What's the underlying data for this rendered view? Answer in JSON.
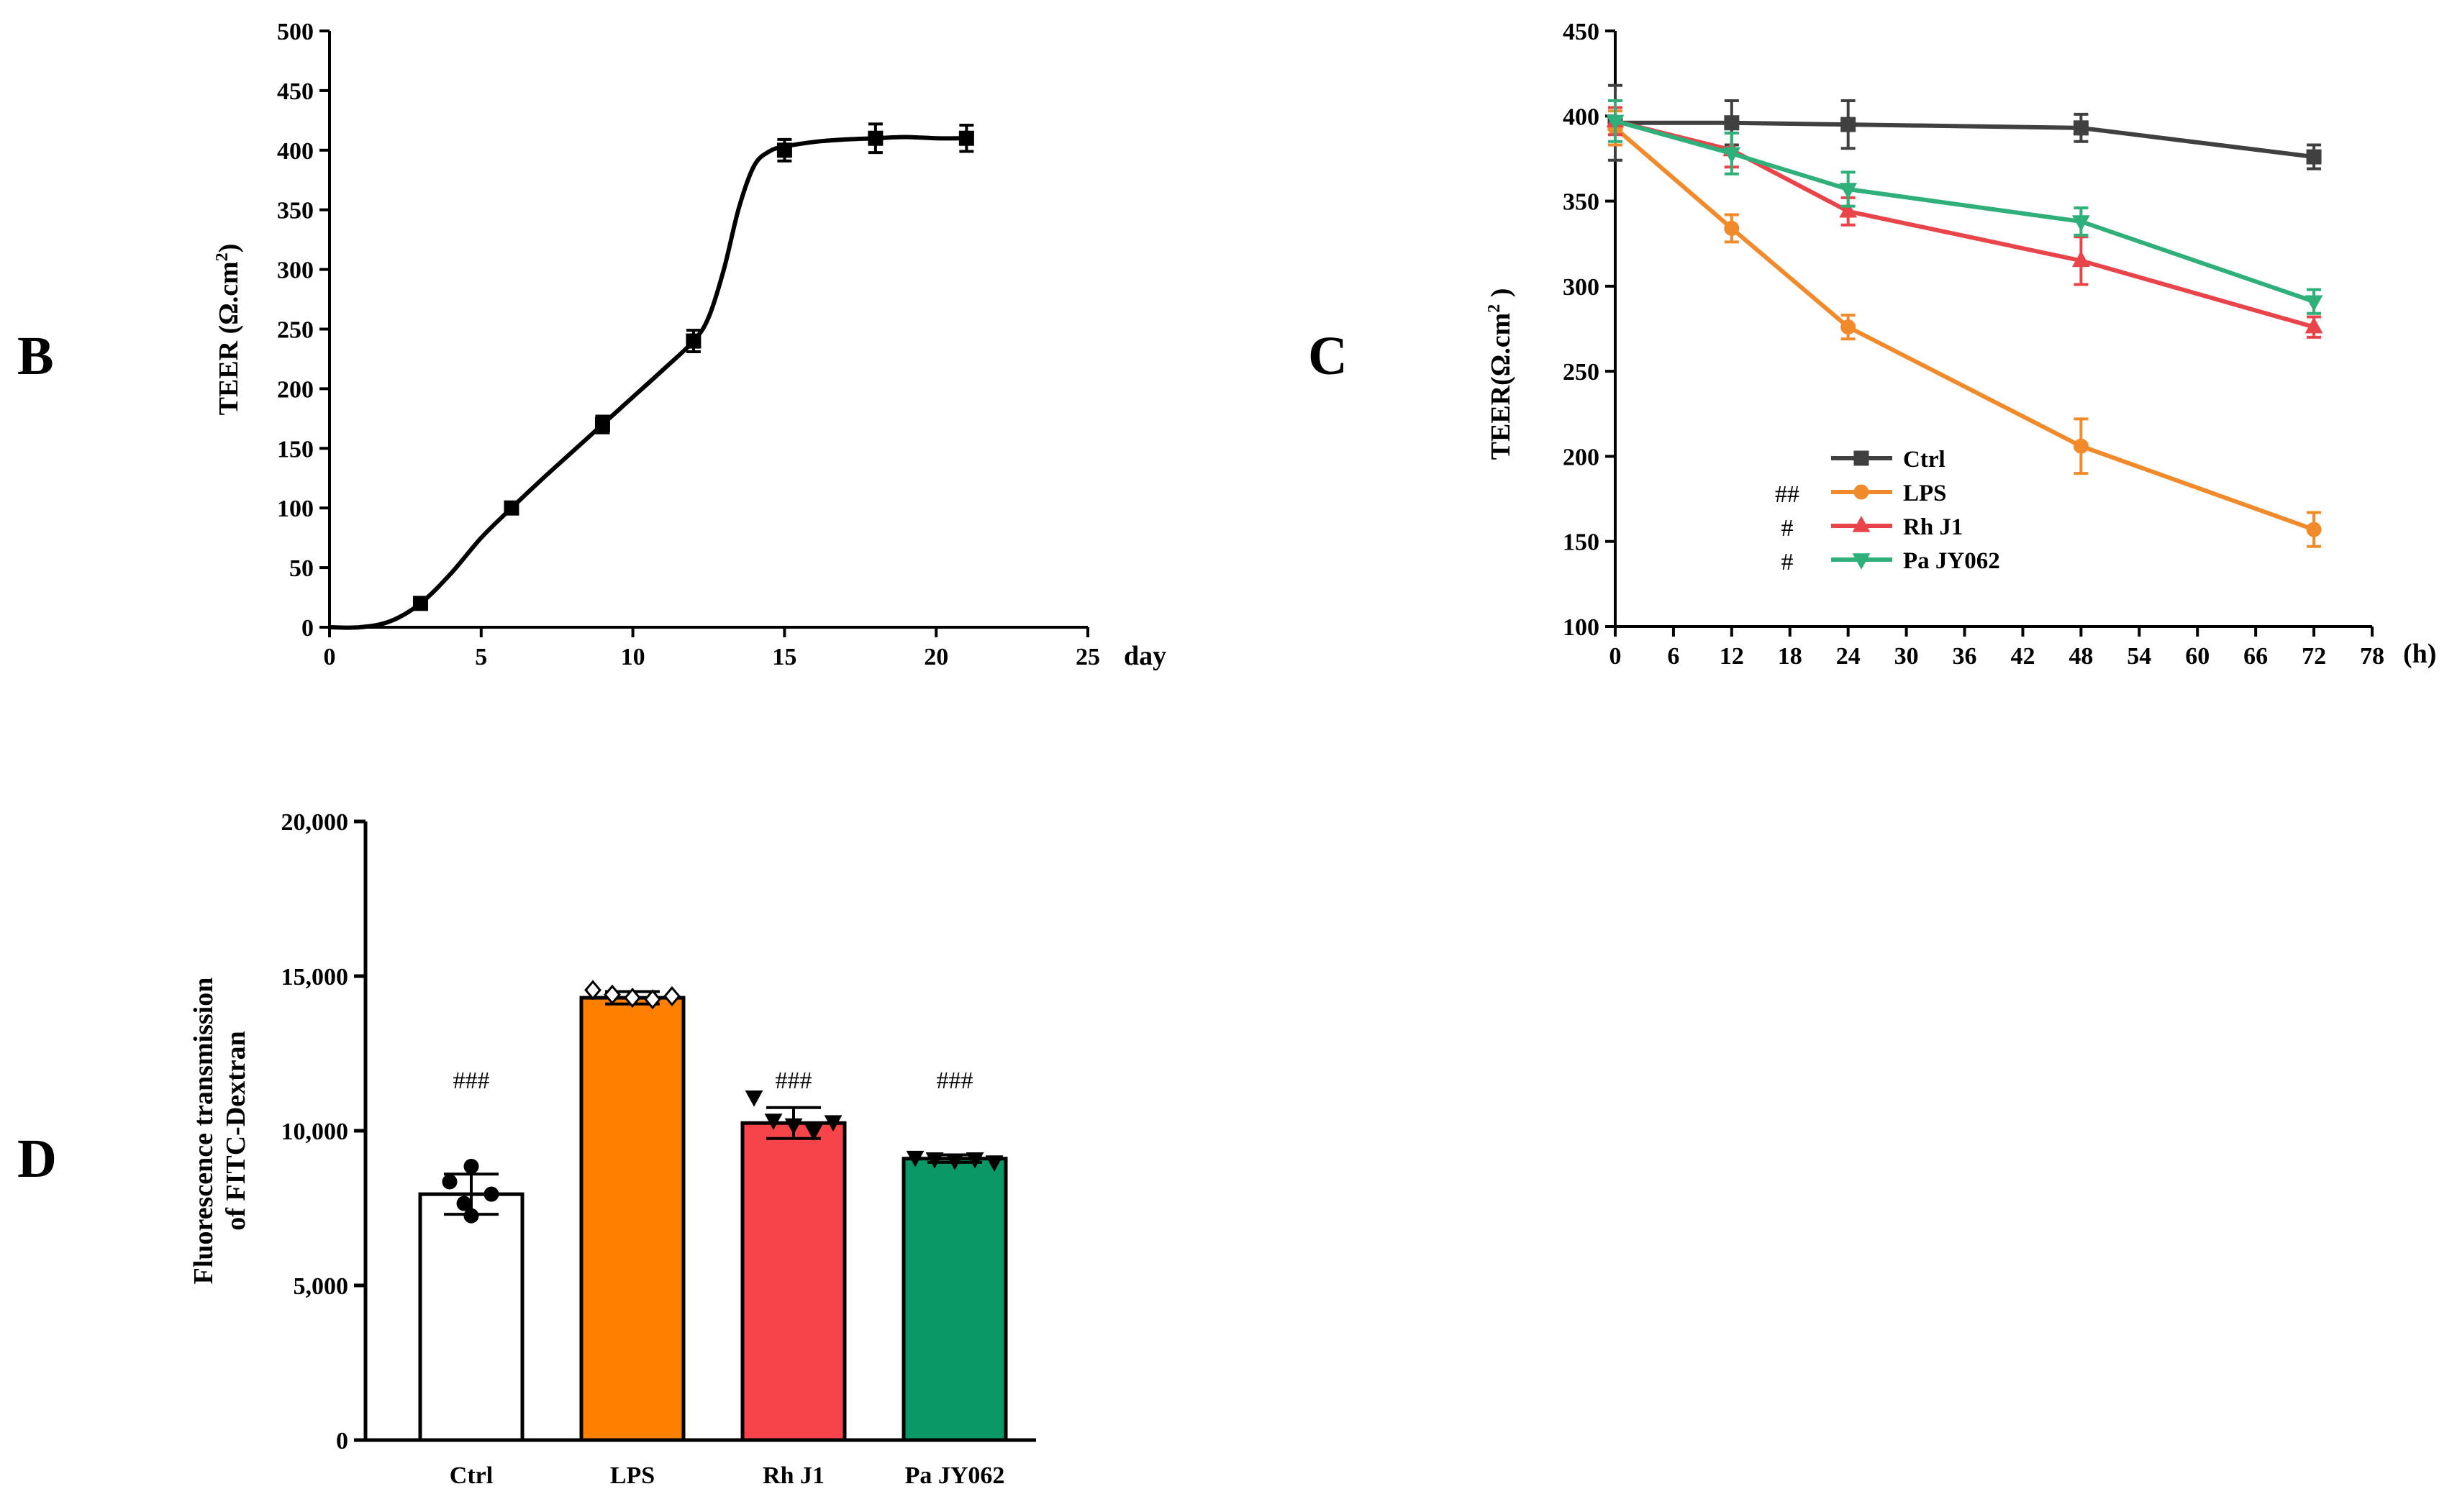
{
  "chart_data": [
    {
      "panel": "B",
      "type": "line",
      "xlabel": "day",
      "ylabel": "TEER (Ω.cm",
      "ylabel_sup": "2",
      "ylabel_close": ")",
      "xlim": [
        0,
        25
      ],
      "ylim": [
        0,
        500
      ],
      "xticks": [
        0,
        5,
        10,
        15,
        20,
        25
      ],
      "yticks": [
        0,
        50,
        100,
        150,
        200,
        250,
        300,
        350,
        400,
        450,
        500
      ],
      "series": [
        {
          "name": "TEER",
          "color": "#000000",
          "points": [
            {
              "x": 3,
              "y": 20,
              "err": 3
            },
            {
              "x": 6,
              "y": 100,
              "err": 4
            },
            {
              "x": 9,
              "y": 170,
              "err": 7
            },
            {
              "x": 12,
              "y": 240,
              "err": 9
            },
            {
              "x": 15,
              "y": 400,
              "err": 9
            },
            {
              "x": 18,
              "y": 410,
              "err": 12
            },
            {
              "x": 21,
              "y": 410,
              "err": 11
            }
          ],
          "curve": [
            [
              0,
              0
            ],
            [
              1,
              0
            ],
            [
              2,
              5
            ],
            [
              3,
              20
            ],
            [
              4,
              45
            ],
            [
              5,
              75
            ],
            [
              6,
              100
            ],
            [
              7,
              124
            ],
            [
              8,
              147
            ],
            [
              9,
              170
            ],
            [
              10,
              193
            ],
            [
              11,
              216
            ],
            [
              12,
              240
            ],
            [
              12.5,
              260
            ],
            [
              13,
              300
            ],
            [
              13.5,
              352
            ],
            [
              14,
              387
            ],
            [
              14.5,
              399
            ],
            [
              15,
              403
            ],
            [
              16,
              407
            ],
            [
              17,
              409
            ],
            [
              18,
              410
            ],
            [
              19,
              411
            ],
            [
              20,
              410
            ],
            [
              21,
              410
            ]
          ]
        }
      ]
    },
    {
      "panel": "C",
      "type": "line",
      "xlabel": "(h)",
      "ylabel": "TEER(Ω.cm",
      "ylabel_sup": "2",
      "ylabel_close": " )",
      "xlim": [
        0,
        78
      ],
      "ylim": [
        100,
        450
      ],
      "xticks": [
        0,
        6,
        12,
        18,
        24,
        30,
        36,
        42,
        48,
        54,
        60,
        66,
        72,
        78
      ],
      "yticks": [
        100,
        150,
        200,
        250,
        300,
        350,
        400,
        450
      ],
      "series": [
        {
          "name": "Ctrl",
          "sig": "",
          "color": "#404040",
          "marker": "square",
          "points": [
            {
              "x": 0,
              "y": 396,
              "err": 22
            },
            {
              "x": 12,
              "y": 396,
              "err": 13
            },
            {
              "x": 24,
              "y": 395,
              "err": 14
            },
            {
              "x": 48,
              "y": 393,
              "err": 8
            },
            {
              "x": 72,
              "y": 376,
              "err": 7
            }
          ]
        },
        {
          "name": "LPS",
          "sig": "##",
          "color": "#f08a2a",
          "marker": "circle",
          "points": [
            {
              "x": 0,
              "y": 393,
              "err": 10
            },
            {
              "x": 12,
              "y": 334,
              "err": 8
            },
            {
              "x": 24,
              "y": 276,
              "err": 7
            },
            {
              "x": 48,
              "y": 206,
              "err": 16
            },
            {
              "x": 72,
              "y": 157,
              "err": 10
            }
          ]
        },
        {
          "name": "Rh J1",
          "sig": "#",
          "color": "#e8444a",
          "marker": "triangle-up",
          "points": [
            {
              "x": 0,
              "y": 397,
              "err": 8
            },
            {
              "x": 12,
              "y": 380,
              "err": 10
            },
            {
              "x": 24,
              "y": 344,
              "err": 8
            },
            {
              "x": 48,
              "y": 315,
              "err": 14
            },
            {
              "x": 72,
              "y": 276,
              "err": 6
            }
          ]
        },
        {
          "name": "Pa JY062",
          "sig": "#",
          "color": "#2fb07a",
          "marker": "triangle-down",
          "points": [
            {
              "x": 0,
              "y": 397,
              "err": 12
            },
            {
              "x": 12,
              "y": 378,
              "err": 12
            },
            {
              "x": 24,
              "y": 357,
              "err": 10
            },
            {
              "x": 48,
              "y": 338,
              "err": 8
            },
            {
              "x": 72,
              "y": 291,
              "err": 7
            }
          ]
        }
      ]
    },
    {
      "panel": "D",
      "type": "bar",
      "ylabel_line1": "Fluorescence transmission",
      "ylabel_line2": "of FITC-Dextran",
      "categories": [
        "Ctrl",
        "LPS",
        "Rh J1",
        "Pa JY062"
      ],
      "values": [
        7950,
        14300,
        10250,
        9100
      ],
      "errors": [
        650,
        200,
        500,
        120
      ],
      "colors": [
        "#ffffff",
        "#ff8000",
        "#f7444a",
        "#0a9966"
      ],
      "markers": [
        "circle",
        "diamond",
        "triangle-down",
        "triangle-down"
      ],
      "significance": [
        "###",
        "",
        "###",
        "###"
      ],
      "ylim": [
        0,
        20000
      ],
      "yticks": [
        0,
        5000,
        10000,
        15000,
        20000
      ],
      "ytick_labels": [
        "0",
        "5,000",
        "10,000",
        "15,000",
        "20,000"
      ],
      "dots": [
        [
          8850,
          8350,
          7950,
          7650,
          7250
        ],
        [
          14550,
          14400,
          14300,
          14250,
          14350
        ],
        [
          11100,
          10350,
          10200,
          10000,
          10300
        ],
        [
          9150,
          9100,
          9050,
          9100,
          9000
        ]
      ]
    }
  ]
}
